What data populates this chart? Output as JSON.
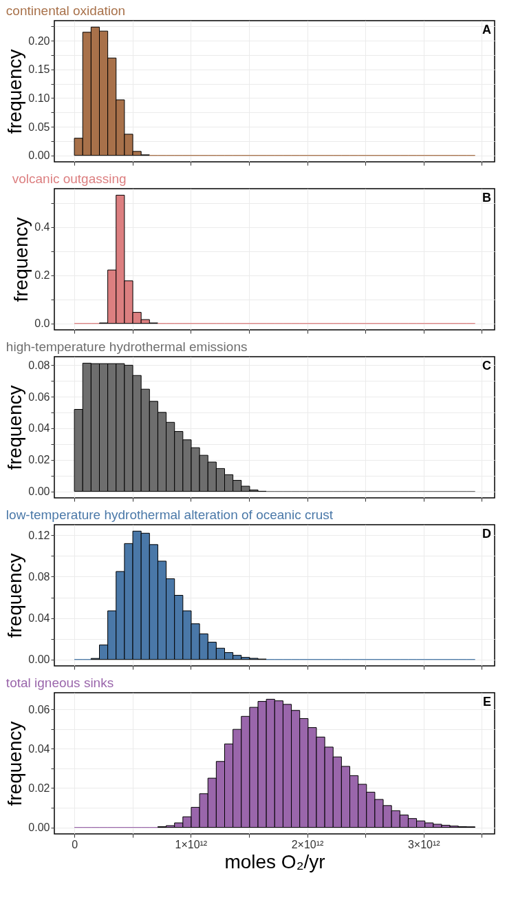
{
  "chart_data": [
    {
      "type": "histogram",
      "title": "continental oxidation",
      "ylabel": "frequency",
      "color": "#a8714a",
      "grid": true,
      "tick_labels": "y",
      "annotations": [
        "A"
      ],
      "bins": [
        0,
        71700000000.0,
        143400000000.0,
        215100000000.0,
        286800000000.0,
        358500000000.0,
        430200000000.0,
        501900000000.0,
        573600000000.0,
        645300000000.0,
        717000000000.0,
        788700000000.0,
        860400000000.0,
        932100000000.0,
        1003800000000.0,
        1075500000000.0,
        1147200000000.0,
        1218900000000.0,
        1290600000000.0,
        1362300000000.0,
        1434000000000.0,
        1505700000000.0,
        1577400000000.0,
        1649100000000.0,
        1720800000000.0,
        1792500000000.0,
        1864200000000.0,
        1935900000000.0,
        2007600000000.0,
        2079300000000.0,
        2151000000000.0,
        2222700000000.0,
        2294400000000.0,
        2366100000000.0,
        2437800000000.0,
        2509500000000.0,
        2581200000000.0,
        2652900000000.0,
        2724600000000.0,
        2796300000000.0,
        2868000000000.0,
        2939700000000.0,
        3011400000000.0,
        3083100000000.0,
        3154800000000.0,
        3226500000000.0,
        3298200000000.0,
        3369900000000.0,
        3441600000000.0
      ],
      "values": [
        0.03,
        0.215,
        0.224,
        0.217,
        0.17,
        0.097,
        0.037,
        0.007,
        0.001,
        0,
        0,
        0,
        0,
        0,
        0,
        0,
        0,
        0,
        0,
        0,
        0,
        0,
        0,
        0,
        0,
        0,
        0,
        0,
        0,
        0,
        0,
        0,
        0,
        0,
        0,
        0,
        0,
        0,
        0,
        0,
        0,
        0,
        0,
        0,
        0,
        0,
        0,
        0
      ],
      "xlim": [
        -172000000000.0,
        3610000000000.0
      ],
      "xticks": [
        {
          "value": 0,
          "label": null
        },
        {
          "value": 500000000000.0,
          "label": null
        },
        {
          "value": 1000000000000.0,
          "label": null
        },
        {
          "value": 1500000000000.0,
          "label": null
        },
        {
          "value": 2000000000000.0,
          "label": null
        },
        {
          "value": 2500000000000.0,
          "label": null
        },
        {
          "value": 3000000000000.0,
          "label": null
        },
        {
          "value": 3500000000000.0,
          "label": null
        }
      ],
      "ylim": [
        -0.0112,
        0.2352
      ],
      "yticks": [
        {
          "value": 0,
          "label": "0.00"
        },
        {
          "value": 0.025,
          "label": null
        },
        {
          "value": 0.05,
          "label": "0.05"
        },
        {
          "value": 0.075,
          "label": null
        },
        {
          "value": 0.1,
          "label": "0.10"
        },
        {
          "value": 0.125,
          "label": null
        },
        {
          "value": 0.15,
          "label": "0.15"
        },
        {
          "value": 0.175,
          "label": null
        },
        {
          "value": 0.2,
          "label": "0.20"
        },
        {
          "value": 0.225,
          "label": null
        }
      ]
    },
    {
      "type": "histogram",
      "title": "volcanic outgassing",
      "ylabel": "frequency",
      "color": "#dc7f80",
      "grid": true,
      "tick_labels": "y",
      "annotations": [
        "B"
      ],
      "bins": [
        0,
        71700000000.0,
        143400000000.0,
        215100000000.0,
        286800000000.0,
        358500000000.0,
        430200000000.0,
        501900000000.0,
        573600000000.0,
        645300000000.0,
        717000000000.0,
        788700000000.0,
        860400000000.0,
        932100000000.0,
        1003800000000.0,
        1075500000000.0,
        1147200000000.0,
        1218900000000.0,
        1290600000000.0,
        1362300000000.0,
        1434000000000.0,
        1505700000000.0,
        1577400000000.0,
        1649100000000.0,
        1720800000000.0,
        1792500000000.0,
        1864200000000.0,
        1935900000000.0,
        2007600000000.0,
        2079300000000.0,
        2151000000000.0,
        2222700000000.0,
        2294400000000.0,
        2366100000000.0,
        2437800000000.0,
        2509500000000.0,
        2581200000000.0,
        2652900000000.0,
        2724600000000.0,
        2796300000000.0,
        2868000000000.0,
        2939700000000.0,
        3011400000000.0,
        3083100000000.0,
        3154800000000.0,
        3226500000000.0,
        3298200000000.0,
        3369900000000.0,
        3441600000000.0
      ],
      "values": [
        0,
        0,
        0,
        0.002,
        0.222,
        0.533,
        0.177,
        0.046,
        0.016,
        0.002,
        0,
        0,
        0,
        0,
        0,
        0,
        0,
        0,
        0,
        0,
        0,
        0,
        0,
        0,
        0,
        0,
        0,
        0,
        0,
        0,
        0,
        0,
        0,
        0,
        0,
        0,
        0,
        0,
        0,
        0,
        0,
        0,
        0,
        0,
        0,
        0,
        0,
        0
      ],
      "xlim": [
        -172000000000.0,
        3610000000000.0
      ],
      "xticks": [
        {
          "value": 0,
          "label": null
        },
        {
          "value": 500000000000.0,
          "label": null
        },
        {
          "value": 1000000000000.0,
          "label": null
        },
        {
          "value": 1500000000000.0,
          "label": null
        },
        {
          "value": 2000000000000.0,
          "label": null
        },
        {
          "value": 2500000000000.0,
          "label": null
        },
        {
          "value": 3000000000000.0,
          "label": null
        },
        {
          "value": 3500000000000.0,
          "label": null
        }
      ],
      "ylim": [
        -0.0267,
        0.56
      ],
      "yticks": [
        {
          "value": 0,
          "label": "0.0"
        },
        {
          "value": 0.1,
          "label": null
        },
        {
          "value": 0.2,
          "label": "0.2"
        },
        {
          "value": 0.3,
          "label": null
        },
        {
          "value": 0.4,
          "label": "0.4"
        },
        {
          "value": 0.5,
          "label": null
        }
      ]
    },
    {
      "type": "histogram",
      "title": "high-temperature hydrothermal emissions",
      "ylabel": "frequency",
      "color": "#6e6e6e",
      "grid": true,
      "tick_labels": "y",
      "annotations": [
        "C"
      ],
      "bins": [
        0,
        71700000000.0,
        143400000000.0,
        215100000000.0,
        286800000000.0,
        358500000000.0,
        430200000000.0,
        501900000000.0,
        573600000000.0,
        645300000000.0,
        717000000000.0,
        788700000000.0,
        860400000000.0,
        932100000000.0,
        1003800000000.0,
        1075500000000.0,
        1147200000000.0,
        1218900000000.0,
        1290600000000.0,
        1362300000000.0,
        1434000000000.0,
        1505700000000.0,
        1577400000000.0,
        1649100000000.0,
        1720800000000.0,
        1792500000000.0,
        1864200000000.0,
        1935900000000.0,
        2007600000000.0,
        2079300000000.0,
        2151000000000.0,
        2222700000000.0,
        2294400000000.0,
        2366100000000.0,
        2437800000000.0,
        2509500000000.0,
        2581200000000.0,
        2652900000000.0,
        2724600000000.0,
        2796300000000.0,
        2868000000000.0,
        2939700000000.0,
        3011400000000.0,
        3083100000000.0,
        3154800000000.0,
        3226500000000.0,
        3298200000000.0,
        3369900000000.0,
        3441600000000.0
      ],
      "values": [
        0.052,
        0.0813,
        0.081,
        0.081,
        0.081,
        0.081,
        0.08,
        0.0735,
        0.0648,
        0.0571,
        0.0501,
        0.0438,
        0.038,
        0.0327,
        0.0277,
        0.0229,
        0.0186,
        0.0145,
        0.0106,
        0.007,
        0.0033,
        0.0009,
        0.0001,
        0,
        0,
        0,
        0,
        0,
        0,
        0,
        0,
        0,
        0,
        0,
        0,
        0,
        0,
        0,
        0,
        0,
        0,
        0,
        0,
        0,
        0,
        0,
        0,
        0
      ],
      "xlim": [
        -172000000000.0,
        3610000000000.0
      ],
      "xticks": [
        {
          "value": 0,
          "label": null
        },
        {
          "value": 500000000000.0,
          "label": null
        },
        {
          "value": 1000000000000.0,
          "label": null
        },
        {
          "value": 1500000000000.0,
          "label": null
        },
        {
          "value": 2000000000000.0,
          "label": null
        },
        {
          "value": 2500000000000.0,
          "label": null
        },
        {
          "value": 3000000000000.0,
          "label": null
        },
        {
          "value": 3500000000000.0,
          "label": null
        }
      ],
      "ylim": [
        -0.0041,
        0.0854
      ],
      "yticks": [
        {
          "value": 0,
          "label": "0.00"
        },
        {
          "value": 0.01,
          "label": null
        },
        {
          "value": 0.02,
          "label": "0.02"
        },
        {
          "value": 0.03,
          "label": null
        },
        {
          "value": 0.04,
          "label": "0.04"
        },
        {
          "value": 0.05,
          "label": null
        },
        {
          "value": 0.06,
          "label": "0.06"
        },
        {
          "value": 0.07,
          "label": null
        },
        {
          "value": 0.08,
          "label": "0.08"
        }
      ]
    },
    {
      "type": "histogram",
      "title": "low-temperature hydrothermal alteration of oceanic crust",
      "ylabel": "frequency",
      "color": "#4a78a8",
      "grid": true,
      "tick_labels": "y",
      "annotations": [
        "D"
      ],
      "bins": [
        0,
        71700000000.0,
        143400000000.0,
        215100000000.0,
        286800000000.0,
        358500000000.0,
        430200000000.0,
        501900000000.0,
        573600000000.0,
        645300000000.0,
        717000000000.0,
        788700000000.0,
        860400000000.0,
        932100000000.0,
        1003800000000.0,
        1075500000000.0,
        1147200000000.0,
        1218900000000.0,
        1290600000000.0,
        1362300000000.0,
        1434000000000.0,
        1505700000000.0,
        1577400000000.0,
        1649100000000.0,
        1720800000000.0,
        1792500000000.0,
        1864200000000.0,
        1935900000000.0,
        2007600000000.0,
        2079300000000.0,
        2151000000000.0,
        2222700000000.0,
        2294400000000.0,
        2366100000000.0,
        2437800000000.0,
        2509500000000.0,
        2581200000000.0,
        2652900000000.0,
        2724600000000.0,
        2796300000000.0,
        2868000000000.0,
        2939700000000.0,
        3011400000000.0,
        3083100000000.0,
        3154800000000.0,
        3226500000000.0,
        3298200000000.0,
        3369900000000.0,
        3441600000000.0
      ],
      "values": [
        0,
        0,
        0.001,
        0.014,
        0.047,
        0.085,
        0.112,
        0.124,
        0.122,
        0.111,
        0.095,
        0.078,
        0.062,
        0.047,
        0.0345,
        0.0247,
        0.0167,
        0.0109,
        0.0067,
        0.004,
        0.002,
        0.0011,
        0.0004,
        0,
        0,
        0,
        0,
        0,
        0,
        0,
        0,
        0,
        0,
        0,
        0,
        0,
        0,
        0,
        0,
        0,
        0,
        0,
        0,
        0,
        0,
        0,
        0,
        0
      ],
      "xlim": [
        -172000000000.0,
        3610000000000.0
      ],
      "xticks": [
        {
          "value": 0,
          "label": null
        },
        {
          "value": 500000000000.0,
          "label": null
        },
        {
          "value": 1000000000000.0,
          "label": null
        },
        {
          "value": 1500000000000.0,
          "label": null
        },
        {
          "value": 2000000000000.0,
          "label": null
        },
        {
          "value": 2500000000000.0,
          "label": null
        },
        {
          "value": 3000000000000.0,
          "label": null
        },
        {
          "value": 3500000000000.0,
          "label": null
        }
      ],
      "ylim": [
        -0.0062,
        0.1302
      ],
      "yticks": [
        {
          "value": 0,
          "label": "0.00"
        },
        {
          "value": 0.02,
          "label": null
        },
        {
          "value": 0.04,
          "label": "0.04"
        },
        {
          "value": 0.06,
          "label": null
        },
        {
          "value": 0.08,
          "label": "0.08"
        },
        {
          "value": 0.1,
          "label": null
        },
        {
          "value": 0.12,
          "label": "0.12"
        }
      ]
    },
    {
      "type": "histogram",
      "title": "total igneous sinks",
      "ylabel": "frequency",
      "xlabel": "moles O₂/yr",
      "color": "#9a66ab",
      "grid": true,
      "annotations": [
        "E"
      ],
      "bins": [
        0,
        71700000000.0,
        143400000000.0,
        215100000000.0,
        286800000000.0,
        358500000000.0,
        430200000000.0,
        501900000000.0,
        573600000000.0,
        645300000000.0,
        717000000000.0,
        788700000000.0,
        860400000000.0,
        932100000000.0,
        1003800000000.0,
        1075500000000.0,
        1147200000000.0,
        1218900000000.0,
        1290600000000.0,
        1362300000000.0,
        1434000000000.0,
        1505700000000.0,
        1577400000000.0,
        1649100000000.0,
        1720800000000.0,
        1792500000000.0,
        1864200000000.0,
        1935900000000.0,
        2007600000000.0,
        2079300000000.0,
        2151000000000.0,
        2222700000000.0,
        2294400000000.0,
        2366100000000.0,
        2437800000000.0,
        2509500000000.0,
        2581200000000.0,
        2652900000000.0,
        2724600000000.0,
        2796300000000.0,
        2868000000000.0,
        2939700000000.0,
        3011400000000.0,
        3083100000000.0,
        3154800000000.0,
        3226500000000.0,
        3298200000000.0,
        3369900000000.0,
        3441600000000.0
      ],
      "values": [
        0,
        0,
        0,
        0,
        0,
        0,
        0,
        0,
        0,
        0,
        0.0004,
        0.0009,
        0.0023,
        0.0054,
        0.0102,
        0.0171,
        0.025,
        0.0335,
        0.0424,
        0.0498,
        0.0564,
        0.061,
        0.064,
        0.0651,
        0.0643,
        0.0625,
        0.0594,
        0.0553,
        0.0507,
        0.0459,
        0.0408,
        0.0358,
        0.031,
        0.0263,
        0.0219,
        0.0179,
        0.0142,
        0.0111,
        0.0085,
        0.0063,
        0.0045,
        0.0033,
        0.0023,
        0.0016,
        0.0011,
        0.0007,
        0.0004,
        0.0003
      ],
      "xlim": [
        -172000000000.0,
        3610000000000.0
      ],
      "xticks": [
        {
          "value": 0,
          "label": "0"
        },
        {
          "value": 500000000000.0,
          "label": null
        },
        {
          "value": 1000000000000.0,
          "label": "1×10¹²"
        },
        {
          "value": 1500000000000.0,
          "label": null
        },
        {
          "value": 2000000000000.0,
          "label": "2×10¹²"
        },
        {
          "value": 2500000000000.0,
          "label": null
        },
        {
          "value": 3000000000000.0,
          "label": "3×10¹²"
        },
        {
          "value": 3500000000000.0,
          "label": null
        }
      ],
      "ylim": [
        -0.0033,
        0.0684
      ],
      "yticks": [
        {
          "value": 0,
          "label": "0.00"
        },
        {
          "value": 0.01,
          "label": null
        },
        {
          "value": 0.02,
          "label": "0.02"
        },
        {
          "value": 0.03,
          "label": null
        },
        {
          "value": 0.04,
          "label": "0.04"
        },
        {
          "value": 0.05,
          "label": null
        },
        {
          "value": 0.06,
          "label": "0.06"
        }
      ]
    }
  ]
}
